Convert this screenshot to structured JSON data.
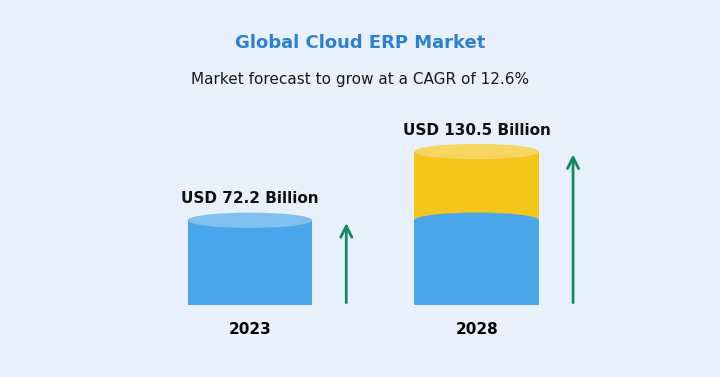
{
  "chart_data": {
    "type": "bar",
    "title": "Global Cloud ERP Market",
    "subtitle": "Market forecast to grow at a CAGR of 12.6%",
    "categories": [
      "2023",
      "2028"
    ],
    "values": [
      72.2,
      130.5
    ],
    "value_labels": [
      "USD 72.2 Billion",
      "USD 130.5 Billion"
    ],
    "data_labels": true,
    "colors": [
      "#4aa6ea",
      "#f4c51a"
    ],
    "tick_labels": "x"
  }
}
